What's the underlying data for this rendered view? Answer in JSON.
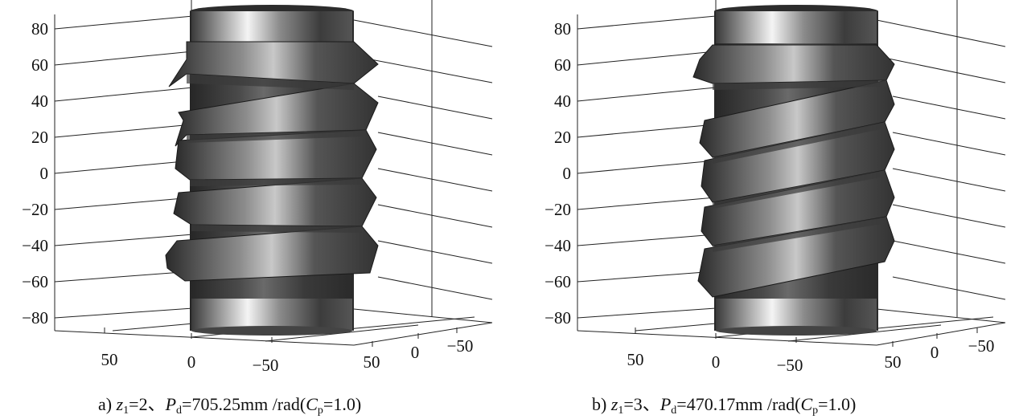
{
  "panels": [
    {
      "id": "a",
      "letter": "a)",
      "z_symbol": "z",
      "z_sub": "1",
      "z_value": "=2",
      "sep": "、",
      "p_symbol": "P",
      "p_sub": "d",
      "p_value": "=705.25mm",
      "unit": "/rad(",
      "c_symbol": "C",
      "c_sub": "p",
      "c_value": "=1.0)",
      "z_axis_ticks": [
        "80",
        "60",
        "40",
        "20",
        "0",
        "−20",
        "−40",
        "−60",
        "−80"
      ],
      "x_axis_ticks": [
        "50",
        "0",
        "−50"
      ],
      "y_axis_ticks": [
        "50",
        "0",
        "−50"
      ]
    },
    {
      "id": "b",
      "letter": "b)",
      "z_symbol": "z",
      "z_sub": "1",
      "z_value": "=3",
      "sep": "、",
      "p_symbol": "P",
      "p_sub": "d",
      "p_value": "=470.17mm",
      "unit": "/rad(",
      "c_symbol": "C",
      "c_sub": "p",
      "c_value": "=1.0)",
      "z_axis_ticks": [
        "80",
        "60",
        "40",
        "20",
        "0",
        "−20",
        "−40",
        "−60",
        "−80"
      ],
      "x_axis_ticks": [
        "50",
        "0",
        "−50"
      ],
      "y_axis_ticks": [
        "50",
        "0",
        "−50"
      ]
    }
  ]
}
